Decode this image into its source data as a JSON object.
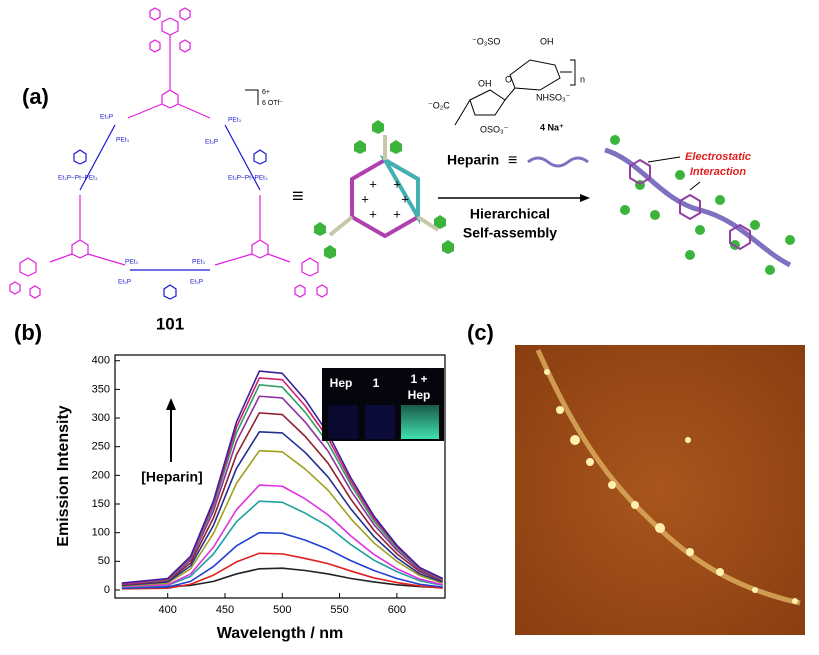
{
  "panel_labels": [
    "(a)",
    "(b)",
    "(c)"
  ],
  "scheme": {
    "charge": "6+",
    "counterion": "6 OTf⁻",
    "compound": "101",
    "equiv1": "≡",
    "heparin_label": "Heparin",
    "equiv2": "≡",
    "process": [
      "Hierarchical",
      "Self-assembly"
    ],
    "annotation": [
      "Electrostatic",
      "Interaction"
    ],
    "heparin_structure": [
      "⁻O₃SO",
      "OH",
      "n",
      "NHSO₃⁻",
      "⁻O₂C",
      "OH",
      "O",
      "OSO₃⁻",
      "4 Na⁺"
    ],
    "pt_ligands": [
      "Et₃P",
      "PEt₃",
      "PEt₃",
      "Et₃P",
      "Et₃P–Pt–PEt₃",
      "Et₃P–Pt–PEt₃",
      "PEt₃",
      "Et₃P",
      "PEt₃",
      "Et₃P"
    ]
  },
  "chart_data": {
    "type": "line",
    "x_label": "Wavelength / nm",
    "y_label": "Emission Intensity",
    "x": [
      360,
      400,
      420,
      440,
      460,
      480,
      500,
      520,
      540,
      560,
      580,
      600,
      620,
      640
    ],
    "xlim": [
      354,
      642
    ],
    "ylim": [
      -14,
      410
    ],
    "xticks": [
      400,
      450,
      500,
      550,
      600
    ],
    "yticks": [
      0,
      50,
      100,
      150,
      200,
      250,
      300,
      350,
      400
    ],
    "annotation": "[Heparin]",
    "inset_labels": [
      "Hep",
      "1",
      "1 +",
      "Hep"
    ],
    "series": [
      {
        "color": "#222222",
        "values": [
          5,
          6,
          8,
          15,
          28,
          37,
          38,
          34,
          28,
          20,
          14,
          9,
          6,
          4
        ]
      },
      {
        "color": "#e02020",
        "values": [
          2,
          3,
          10,
          26,
          49,
          64,
          63,
          55,
          46,
          33,
          21,
          13,
          7,
          3
        ]
      },
      {
        "color": "#2040d0",
        "values": [
          3,
          5,
          15,
          41,
          77,
          100,
          99,
          87,
          71,
          51,
          34,
          20,
          10,
          5
        ]
      },
      {
        "color": "#20a0a0",
        "values": [
          5,
          8,
          24,
          63,
          119,
          155,
          153,
          134,
          111,
          79,
          52,
          32,
          16,
          8
        ]
      },
      {
        "color": "#e030e0",
        "values": [
          6,
          9,
          28,
          75,
          140,
          183,
          181,
          159,
          131,
          94,
          62,
          37,
          19,
          9
        ]
      },
      {
        "color": "#a0a020",
        "values": [
          7,
          12,
          37,
          99,
          186,
          243,
          241,
          211,
          174,
          124,
          82,
          50,
          25,
          12
        ]
      },
      {
        "color": "#203090",
        "values": [
          8,
          14,
          42,
          113,
          212,
          276,
          274,
          240,
          197,
          141,
          93,
          56,
          28,
          14
        ]
      },
      {
        "color": "#902030",
        "values": [
          9,
          16,
          47,
          126,
          236,
          309,
          306,
          268,
          221,
          158,
          104,
          63,
          32,
          16
        ]
      },
      {
        "color": "#9030a0",
        "values": [
          10,
          17,
          52,
          138,
          259,
          338,
          335,
          293,
          242,
          173,
          114,
          69,
          35,
          17
        ]
      },
      {
        "color": "#30a060",
        "values": [
          11,
          18,
          55,
          146,
          274,
          358,
          354,
          310,
          256,
          183,
          120,
          73,
          37,
          18
        ]
      },
      {
        "color": "#d02070",
        "values": [
          11,
          19,
          57,
          151,
          284,
          370,
          367,
          321,
          265,
          189,
          125,
          76,
          38,
          19
        ]
      },
      {
        "color": "#4020a0",
        "values": [
          12,
          20,
          59,
          156,
          293,
          382,
          378,
          332,
          273,
          195,
          129,
          78,
          39,
          20
        ]
      }
    ]
  }
}
